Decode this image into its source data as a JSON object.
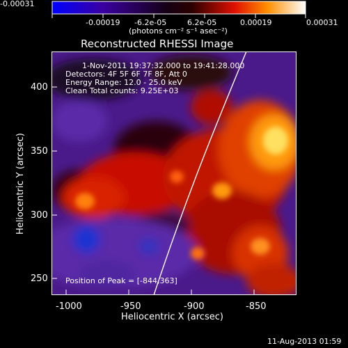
{
  "colorbar": {
    "ticks": [
      "-0.00031",
      "-0.00019",
      "-6.2e-05",
      "6.2e-05",
      "0.00019",
      "0.00031"
    ],
    "units": "(photons cm⁻² s⁻¹ asec⁻²)"
  },
  "plot": {
    "title": "Reconstructed RHESSI Image",
    "xlabel": "Heliocentric X (arcsec)",
    "ylabel": "Heliocentric Y (arcsec)",
    "xticks": [
      "-1000",
      "-950",
      "-900",
      "-850"
    ],
    "yticks": [
      "400",
      "350",
      "300",
      "250"
    ],
    "info": [
      "1-Nov-2011 19:37:32.000 to 19:41:28.000",
      "Detectors: 4F 5F 6F 7F 8F, Att 0",
      "Energy Range: 12.0 - 25.0 keV",
      "Clean     Total counts: 9.25E+03"
    ],
    "peak": "Position of Peak = [-844,363]"
  },
  "footer": {
    "timestamp": "11-Aug-2013 01:59"
  }
}
